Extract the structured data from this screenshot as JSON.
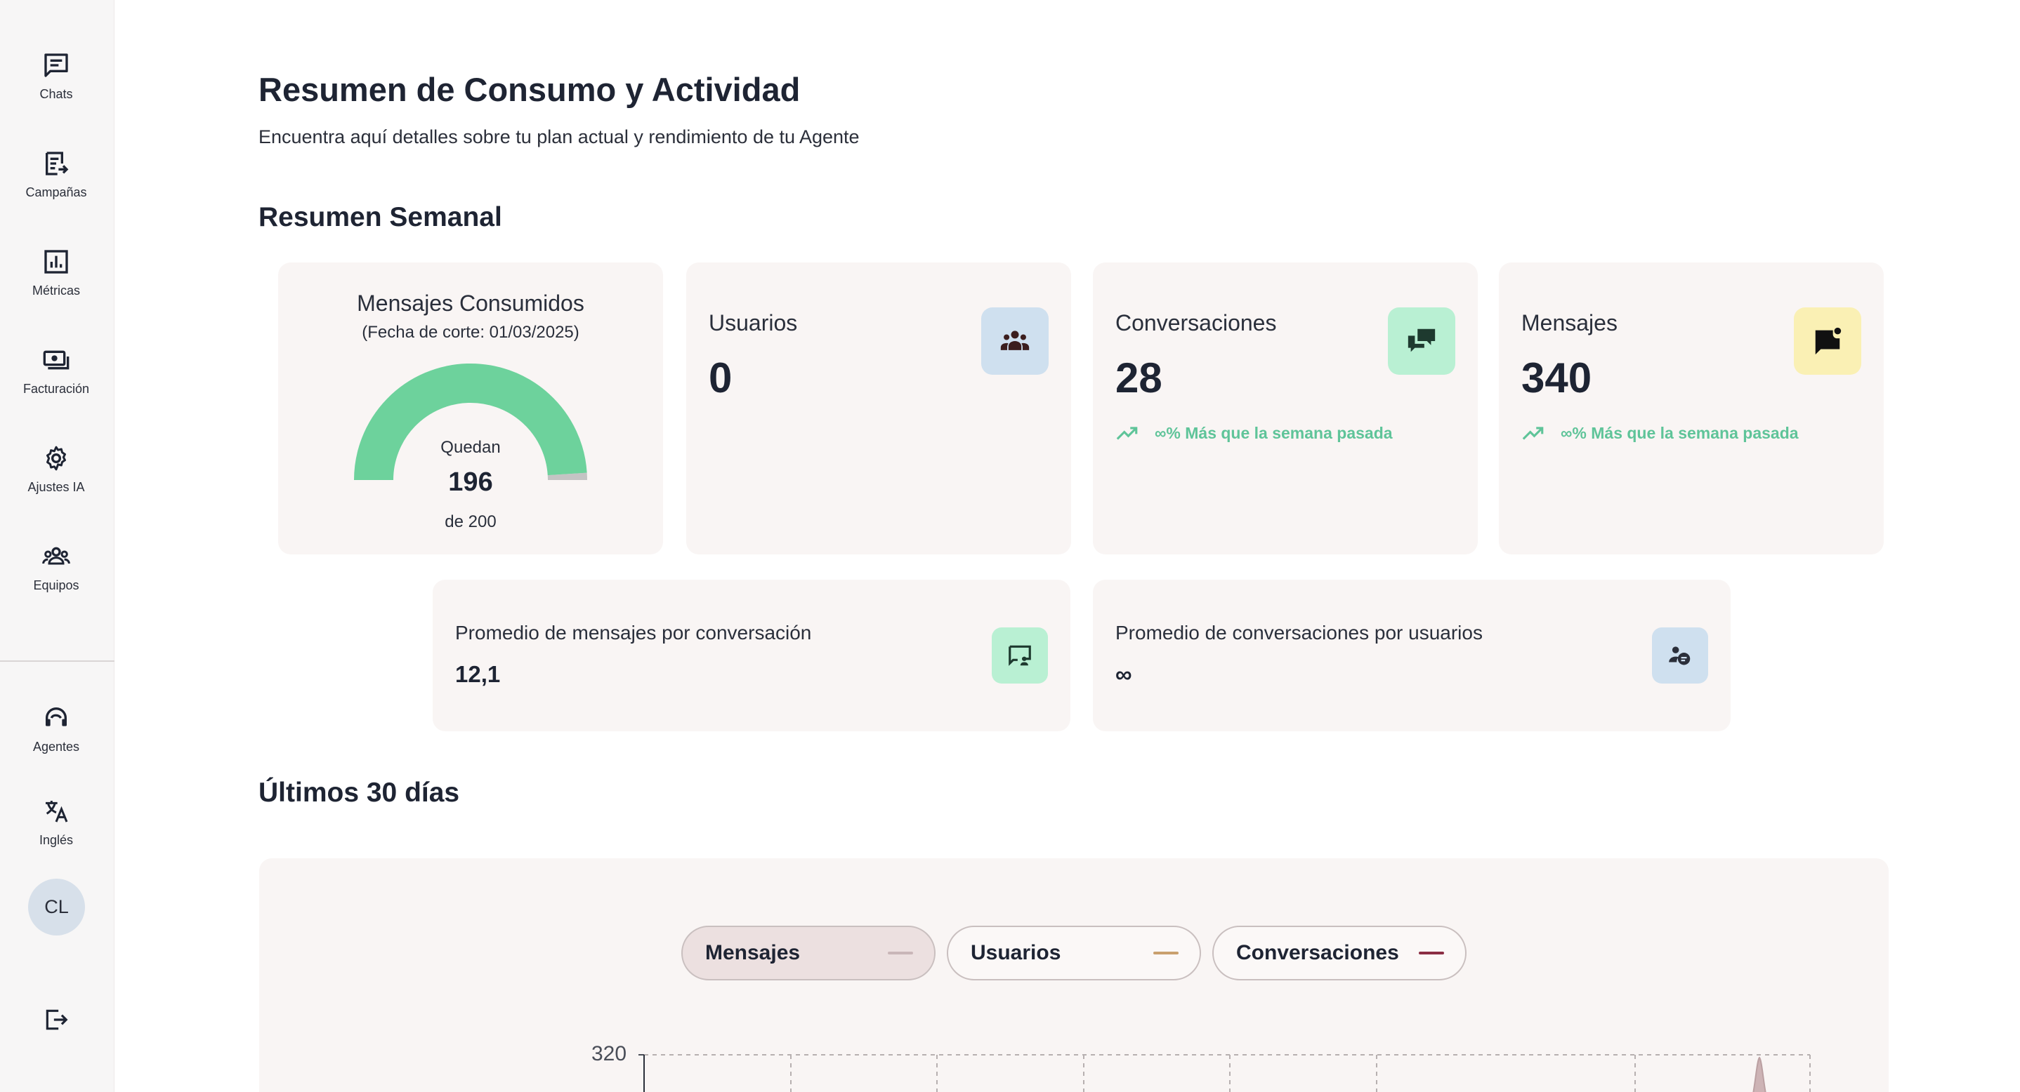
{
  "sidebar": {
    "items": [
      {
        "label": "Chats",
        "icon": "chat-icon"
      },
      {
        "label": "Campañas",
        "icon": "campaign-icon"
      },
      {
        "label": "Métricas",
        "icon": "metrics-icon"
      },
      {
        "label": "Facturación",
        "icon": "billing-icon"
      },
      {
        "label": "Ajustes IA",
        "icon": "gear-icon"
      },
      {
        "label": "Equipos",
        "icon": "teams-icon"
      }
    ],
    "bottom_items": [
      {
        "label": "Agentes",
        "icon": "headset-icon"
      },
      {
        "label": "Inglés",
        "icon": "translate-icon"
      }
    ],
    "avatar_initials": "CL",
    "logout_icon": "logout-icon"
  },
  "header": {
    "title": "Resumen de Consumo y Actividad",
    "subtitle": "Encuentra aquí detalles sobre tu plan actual y rendimiento de tu Agente"
  },
  "weekly": {
    "heading": "Resumen Semanal",
    "consumed": {
      "title": "Mensajes Consumidos",
      "cutoff": "(Fecha de corte: 01/03/2025)",
      "remaining_label": "Quedan",
      "remaining": "196",
      "total_label": "de 200",
      "remaining_fraction": 0.98,
      "gauge_color": "#6dd29c",
      "gauge_rest_color": "#c4c4c4"
    },
    "users": {
      "title": "Usuarios",
      "value": "0",
      "icon": "group-icon",
      "icon_bg": "#cfe0ef"
    },
    "conversations": {
      "title": "Conversaciones",
      "value": "28",
      "trend": "∞% Más que la semana pasada",
      "icon": "forum-icon",
      "icon_bg": "#b9f0d3"
    },
    "messages": {
      "title": "Mensajes",
      "value": "340",
      "trend": "∞% Más que la semana pasada",
      "icon": "message-badge-icon",
      "icon_bg": "#faf0b4"
    }
  },
  "averages": {
    "per_conversation": {
      "title": "Promedio de mensajes por conversación",
      "value": "12,1",
      "icon": "chat-person-icon",
      "icon_bg": "#b9f0d3"
    },
    "per_user": {
      "title": "Promedio de conversaciones por usuarios",
      "value": "∞",
      "icon": "users-chat-icon",
      "icon_bg": "#cfe0ef"
    }
  },
  "monthly": {
    "heading": "Últimos 30 días",
    "legend": [
      {
        "label": "Mensajes",
        "color": "#c9b6b8",
        "active": true
      },
      {
        "label": "Usuarios",
        "color": "#c9a06e",
        "active": false
      },
      {
        "label": "Conversaciones",
        "color": "#8b2e44",
        "active": false
      }
    ],
    "y_top_tick": "320"
  },
  "chart_data": {
    "type": "area",
    "series": [
      {
        "name": "Mensajes"
      }
    ],
    "ylim": [
      0,
      320
    ],
    "yticks": [
      "320"
    ],
    "grid": true
  }
}
